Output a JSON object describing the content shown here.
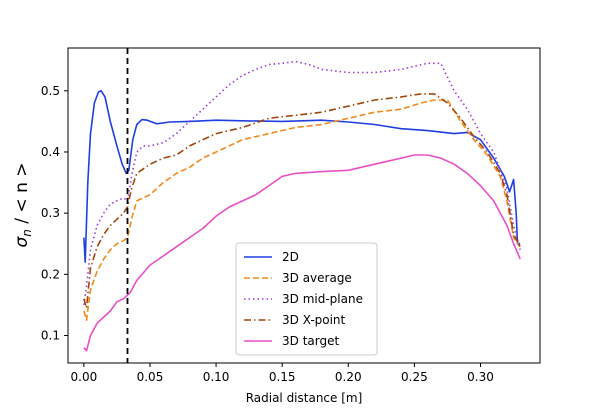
{
  "chart_data": {
    "type": "line",
    "xlabel": "Radial distance [m]",
    "ylabel": "σ_n / < n >",
    "xlim": [
      -0.012,
      0.345
    ],
    "ylim": [
      0.055,
      0.57
    ],
    "xticks": [
      0.0,
      0.05,
      0.1,
      0.15,
      0.2,
      0.25,
      0.3
    ],
    "xtick_labels": [
      "0.00",
      "0.05",
      "0.10",
      "0.15",
      "0.20",
      "0.25",
      "0.30"
    ],
    "yticks": [
      0.1,
      0.2,
      0.3,
      0.4,
      0.5
    ],
    "ytick_labels": [
      "0.1",
      "0.2",
      "0.3",
      "0.4",
      "0.5"
    ],
    "vline": {
      "x": 0.033,
      "style": "dashed",
      "color": "#000000"
    },
    "legend": {
      "placement": "lower-center"
    },
    "series": [
      {
        "name": "2D",
        "color": "#1f3fe0",
        "dash": "solid",
        "x": [
          0.0,
          0.001,
          0.003,
          0.005,
          0.008,
          0.011,
          0.013,
          0.016,
          0.02,
          0.025,
          0.029,
          0.032,
          0.034,
          0.037,
          0.04,
          0.044,
          0.048,
          0.055,
          0.065,
          0.08,
          0.1,
          0.12,
          0.15,
          0.18,
          0.2,
          0.22,
          0.24,
          0.26,
          0.28,
          0.29,
          0.3,
          0.31,
          0.318,
          0.322,
          0.325,
          0.327,
          0.328,
          0.329,
          0.33
        ],
        "y": [
          0.26,
          0.22,
          0.35,
          0.43,
          0.48,
          0.498,
          0.5,
          0.49,
          0.45,
          0.41,
          0.38,
          0.365,
          0.37,
          0.42,
          0.445,
          0.453,
          0.452,
          0.446,
          0.449,
          0.45,
          0.452,
          0.451,
          0.45,
          0.452,
          0.449,
          0.445,
          0.438,
          0.435,
          0.43,
          0.432,
          0.42,
          0.39,
          0.36,
          0.335,
          0.355,
          0.3,
          0.25,
          0.25,
          0.25
        ]
      },
      {
        "name": "3D average",
        "color": "#f08a1c",
        "dash": "dashed",
        "x": [
          0.0,
          0.002,
          0.005,
          0.01,
          0.015,
          0.02,
          0.025,
          0.03,
          0.033,
          0.036,
          0.04,
          0.05,
          0.06,
          0.07,
          0.08,
          0.09,
          0.1,
          0.12,
          0.14,
          0.16,
          0.18,
          0.2,
          0.22,
          0.24,
          0.255,
          0.265,
          0.275,
          0.285,
          0.295,
          0.305,
          0.315,
          0.32,
          0.325,
          0.33
        ],
        "y": [
          0.14,
          0.125,
          0.175,
          0.205,
          0.225,
          0.24,
          0.25,
          0.255,
          0.26,
          0.29,
          0.32,
          0.33,
          0.35,
          0.365,
          0.375,
          0.39,
          0.4,
          0.42,
          0.43,
          0.44,
          0.445,
          0.455,
          0.465,
          0.47,
          0.48,
          0.485,
          0.485,
          0.45,
          0.42,
          0.395,
          0.36,
          0.32,
          0.26,
          0.245
        ]
      },
      {
        "name": "3D mid-plane",
        "color": "#9b3be0",
        "dash": "dotted",
        "x": [
          0.0,
          0.002,
          0.005,
          0.01,
          0.015,
          0.02,
          0.025,
          0.03,
          0.033,
          0.036,
          0.04,
          0.045,
          0.05,
          0.06,
          0.07,
          0.08,
          0.09,
          0.1,
          0.11,
          0.12,
          0.13,
          0.14,
          0.15,
          0.16,
          0.17,
          0.18,
          0.2,
          0.22,
          0.24,
          0.25,
          0.26,
          0.27,
          0.28,
          0.29,
          0.3,
          0.31,
          0.32,
          0.325,
          0.33
        ],
        "y": [
          0.15,
          0.18,
          0.24,
          0.28,
          0.3,
          0.315,
          0.32,
          0.325,
          0.32,
          0.36,
          0.4,
          0.41,
          0.41,
          0.415,
          0.43,
          0.45,
          0.47,
          0.49,
          0.51,
          0.525,
          0.535,
          0.543,
          0.545,
          0.548,
          0.543,
          0.535,
          0.53,
          0.53,
          0.535,
          0.54,
          0.545,
          0.545,
          0.5,
          0.47,
          0.43,
          0.4,
          0.34,
          0.28,
          0.24
        ]
      },
      {
        "name": "3D X-point",
        "color": "#a0460a",
        "dash": "dashdot",
        "x": [
          0.0,
          0.002,
          0.005,
          0.01,
          0.015,
          0.02,
          0.025,
          0.03,
          0.033,
          0.036,
          0.04,
          0.05,
          0.06,
          0.07,
          0.08,
          0.09,
          0.1,
          0.12,
          0.14,
          0.16,
          0.18,
          0.2,
          0.22,
          0.24,
          0.255,
          0.265,
          0.275,
          0.285,
          0.295,
          0.305,
          0.315,
          0.32,
          0.325,
          0.33
        ],
        "y": [
          0.16,
          0.145,
          0.21,
          0.245,
          0.265,
          0.28,
          0.29,
          0.3,
          0.31,
          0.34,
          0.365,
          0.38,
          0.39,
          0.395,
          0.41,
          0.42,
          0.43,
          0.44,
          0.455,
          0.46,
          0.465,
          0.475,
          0.485,
          0.49,
          0.495,
          0.495,
          0.48,
          0.455,
          0.425,
          0.4,
          0.365,
          0.33,
          0.265,
          0.245
        ]
      },
      {
        "name": "3D target",
        "color": "#e84fc6",
        "dash": "solid",
        "x": [
          0.0,
          0.002,
          0.005,
          0.01,
          0.015,
          0.02,
          0.025,
          0.03,
          0.035,
          0.04,
          0.05,
          0.06,
          0.07,
          0.08,
          0.09,
          0.1,
          0.11,
          0.12,
          0.13,
          0.14,
          0.15,
          0.16,
          0.18,
          0.2,
          0.22,
          0.24,
          0.25,
          0.26,
          0.27,
          0.28,
          0.29,
          0.3,
          0.31,
          0.32,
          0.325,
          0.33
        ],
        "y": [
          0.08,
          0.075,
          0.1,
          0.12,
          0.13,
          0.14,
          0.155,
          0.16,
          0.17,
          0.19,
          0.215,
          0.23,
          0.245,
          0.26,
          0.275,
          0.295,
          0.31,
          0.32,
          0.33,
          0.345,
          0.36,
          0.365,
          0.368,
          0.37,
          0.38,
          0.39,
          0.395,
          0.395,
          0.39,
          0.38,
          0.365,
          0.345,
          0.32,
          0.28,
          0.25,
          0.225
        ]
      }
    ]
  }
}
